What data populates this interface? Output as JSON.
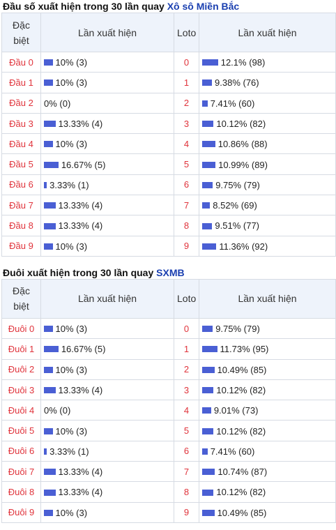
{
  "section1": {
    "title": "Đầu số xuất hiện trong 30 lần quay",
    "link": "Xô sô Miền Bắc",
    "headers": {
      "special": "Đặc biệt",
      "count": "Lần xuất hiện",
      "loto": "Loto",
      "loto_count": "Lần xuất hiện"
    },
    "rows": [
      {
        "label": "Đầu 0",
        "count": "10% (3)",
        "pct": 10,
        "loto": "0",
        "loto_count": "12.1% (98)",
        "loto_pct": 12.1
      },
      {
        "label": "Đầu 1",
        "count": "10% (3)",
        "pct": 10,
        "loto": "1",
        "loto_count": "9.38% (76)",
        "loto_pct": 9.38
      },
      {
        "label": "Đầu 2",
        "count": "0% (0)",
        "pct": 0,
        "loto": "2",
        "loto_count": "7.41% (60)",
        "loto_pct": 7.41
      },
      {
        "label": "Đầu 3",
        "count": "13.33% (4)",
        "pct": 13.33,
        "loto": "3",
        "loto_count": "10.12% (82)",
        "loto_pct": 10.12
      },
      {
        "label": "Đầu 4",
        "count": "10% (3)",
        "pct": 10,
        "loto": "4",
        "loto_count": "10.86% (88)",
        "loto_pct": 10.86
      },
      {
        "label": "Đầu 5",
        "count": "16.67% (5)",
        "pct": 16.67,
        "loto": "5",
        "loto_count": "10.99% (89)",
        "loto_pct": 10.99
      },
      {
        "label": "Đầu 6",
        "count": "3.33% (1)",
        "pct": 3.33,
        "loto": "6",
        "loto_count": "9.75% (79)",
        "loto_pct": 9.75
      },
      {
        "label": "Đầu 7",
        "count": "13.33% (4)",
        "pct": 13.33,
        "loto": "7",
        "loto_count": "8.52% (69)",
        "loto_pct": 8.52
      },
      {
        "label": "Đầu 8",
        "count": "13.33% (4)",
        "pct": 13.33,
        "loto": "8",
        "loto_count": "9.51% (77)",
        "loto_pct": 9.51
      },
      {
        "label": "Đầu 9",
        "count": "10% (3)",
        "pct": 10,
        "loto": "9",
        "loto_count": "11.36% (92)",
        "loto_pct": 11.36
      }
    ]
  },
  "section2": {
    "title": "Đuôi xuất hiện trong 30 lần quay",
    "link": "SXMB",
    "headers": {
      "special": "Đặc biệt",
      "count": "Lần xuất hiện",
      "loto": "Loto",
      "loto_count": "Lần xuất hiện"
    },
    "rows": [
      {
        "label": "Đuôi 0",
        "count": "10% (3)",
        "pct": 10,
        "loto": "0",
        "loto_count": "9.75% (79)",
        "loto_pct": 9.75
      },
      {
        "label": "Đuôi 1",
        "count": "16.67% (5)",
        "pct": 16.67,
        "loto": "1",
        "loto_count": "11.73% (95)",
        "loto_pct": 11.73
      },
      {
        "label": "Đuôi 2",
        "count": "10% (3)",
        "pct": 10,
        "loto": "2",
        "loto_count": "10.49% (85)",
        "loto_pct": 10.49
      },
      {
        "label": "Đuôi 3",
        "count": "13.33% (4)",
        "pct": 13.33,
        "loto": "3",
        "loto_count": "10.12% (82)",
        "loto_pct": 10.12
      },
      {
        "label": "Đuôi 4",
        "count": "0% (0)",
        "pct": 0,
        "loto": "4",
        "loto_count": "9.01% (73)",
        "loto_pct": 9.01
      },
      {
        "label": "Đuôi 5",
        "count": "10% (3)",
        "pct": 10,
        "loto": "5",
        "loto_count": "10.12% (82)",
        "loto_pct": 10.12
      },
      {
        "label": "Đuôi 6",
        "count": "3.33% (1)",
        "pct": 3.33,
        "loto": "6",
        "loto_count": "7.41% (60)",
        "loto_pct": 7.41
      },
      {
        "label": "Đuôi 7",
        "count": "13.33% (4)",
        "pct": 13.33,
        "loto": "7",
        "loto_count": "10.74% (87)",
        "loto_pct": 10.74
      },
      {
        "label": "Đuôi 8",
        "count": "13.33% (4)",
        "pct": 13.33,
        "loto": "8",
        "loto_count": "10.12% (82)",
        "loto_pct": 10.12
      },
      {
        "label": "Đuôi 9",
        "count": "10% (3)",
        "pct": 10,
        "loto": "9",
        "loto_count": "10.49% (85)",
        "loto_pct": 10.49
      }
    ]
  }
}
